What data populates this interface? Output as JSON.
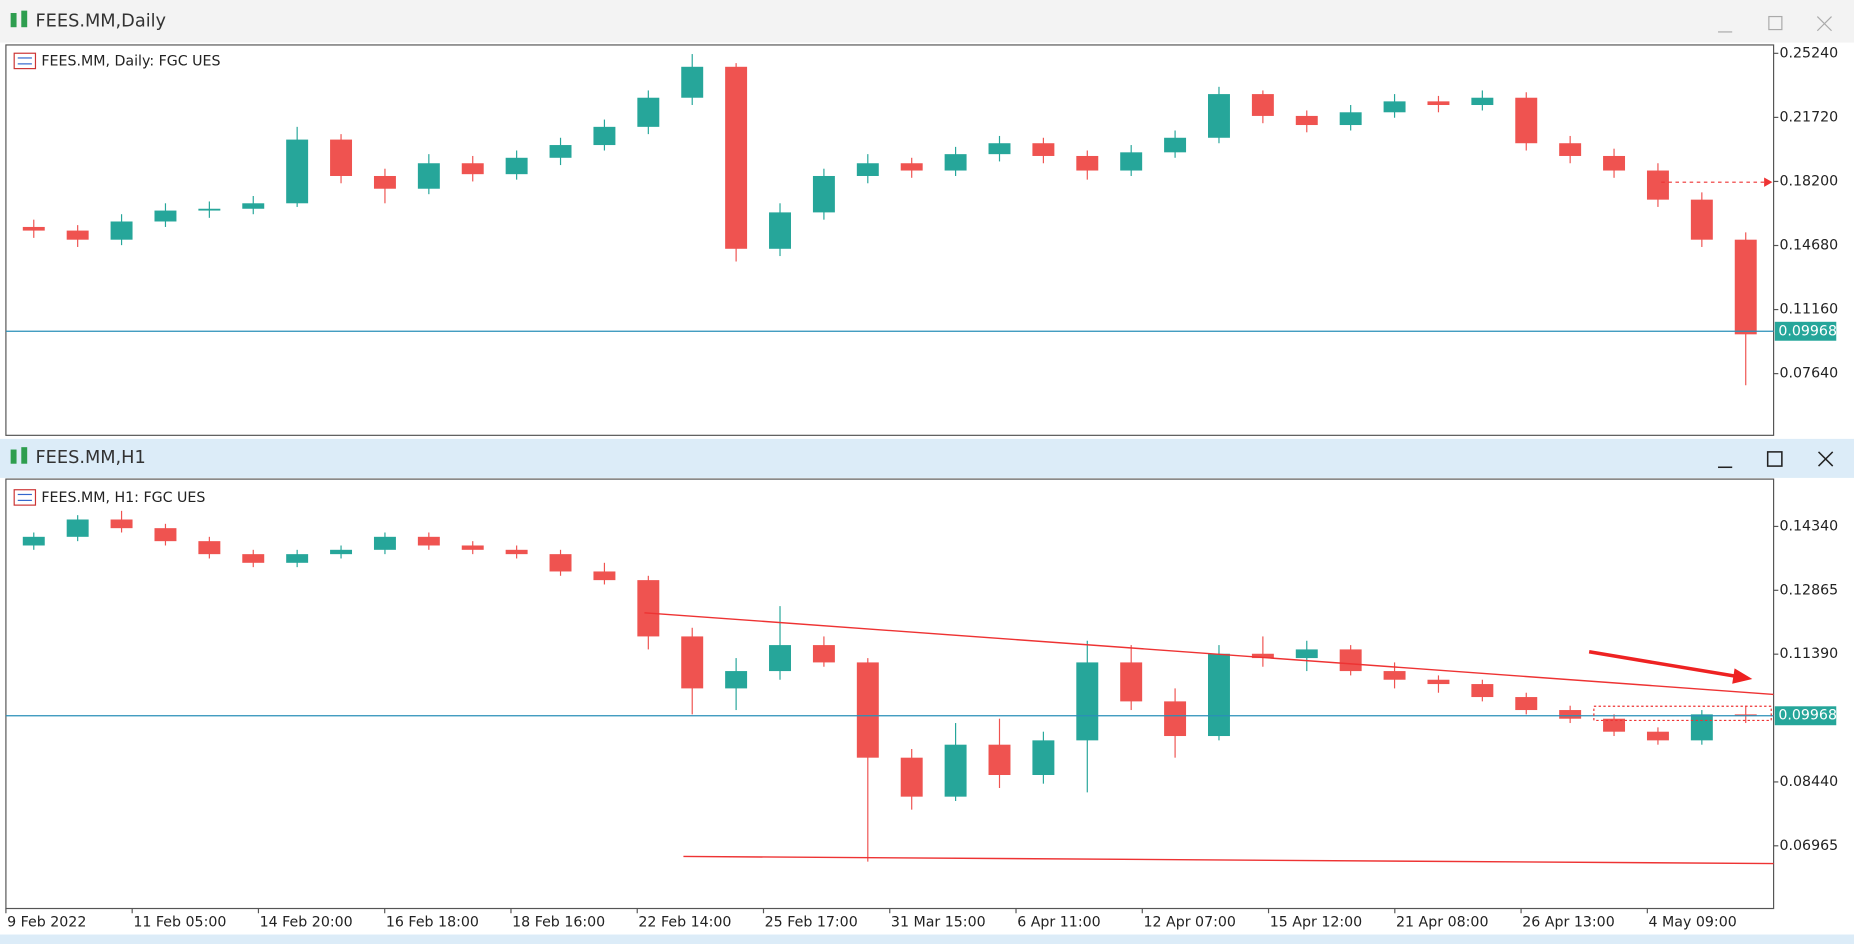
{
  "chart_data": [
    {
      "type": "candlestick",
      "title": "FEES.MM,Daily",
      "label": "FEES.MM, Daily:  FGC UES",
      "up_color": "#26a69a",
      "down_color": "#ef5350",
      "price_line_color": "#2a8fb8",
      "ylim": [
        0.0425,
        0.257
      ],
      "yticks": [
        {
          "value": 0.2524,
          "label": "0.25240"
        },
        {
          "value": 0.2172,
          "label": "0.21720"
        },
        {
          "value": 0.182,
          "label": "0.18200"
        },
        {
          "value": 0.1468,
          "label": "0.14680"
        },
        {
          "value": 0.1116,
          "label": "0.11160"
        },
        {
          "value": 0.0764,
          "label": "0.07640"
        }
      ],
      "last": 0.09968,
      "ohlc": [
        [
          0.157,
          0.161,
          0.151,
          0.155
        ],
        [
          0.155,
          0.158,
          0.146,
          0.15
        ],
        [
          0.15,
          0.164,
          0.147,
          0.16
        ],
        [
          0.16,
          0.17,
          0.157,
          0.166
        ],
        [
          0.166,
          0.171,
          0.162,
          0.167
        ],
        [
          0.167,
          0.174,
          0.164,
          0.17
        ],
        [
          0.17,
          0.212,
          0.168,
          0.205
        ],
        [
          0.205,
          0.208,
          0.181,
          0.185
        ],
        [
          0.185,
          0.189,
          0.17,
          0.178
        ],
        [
          0.178,
          0.197,
          0.175,
          0.192
        ],
        [
          0.192,
          0.196,
          0.182,
          0.186
        ],
        [
          0.186,
          0.199,
          0.183,
          0.195
        ],
        [
          0.195,
          0.206,
          0.191,
          0.202
        ],
        [
          0.202,
          0.216,
          0.199,
          0.212
        ],
        [
          0.212,
          0.232,
          0.208,
          0.228
        ],
        [
          0.228,
          0.252,
          0.224,
          0.245
        ],
        [
          0.245,
          0.247,
          0.138,
          0.145
        ],
        [
          0.145,
          0.17,
          0.141,
          0.165
        ],
        [
          0.165,
          0.189,
          0.161,
          0.185
        ],
        [
          0.185,
          0.197,
          0.181,
          0.192
        ],
        [
          0.192,
          0.195,
          0.184,
          0.188
        ],
        [
          0.188,
          0.201,
          0.185,
          0.197
        ],
        [
          0.197,
          0.207,
          0.193,
          0.203
        ],
        [
          0.203,
          0.206,
          0.192,
          0.196
        ],
        [
          0.196,
          0.199,
          0.183,
          0.188
        ],
        [
          0.188,
          0.202,
          0.185,
          0.198
        ],
        [
          0.198,
          0.21,
          0.195,
          0.206
        ],
        [
          0.206,
          0.234,
          0.203,
          0.23
        ],
        [
          0.23,
          0.232,
          0.214,
          0.218
        ],
        [
          0.218,
          0.221,
          0.209,
          0.213
        ],
        [
          0.213,
          0.224,
          0.21,
          0.22
        ],
        [
          0.22,
          0.23,
          0.217,
          0.226
        ],
        [
          0.226,
          0.229,
          0.22,
          0.224
        ],
        [
          0.224,
          0.232,
          0.221,
          0.228
        ],
        [
          0.228,
          0.231,
          0.199,
          0.203
        ],
        [
          0.203,
          0.207,
          0.192,
          0.196
        ],
        [
          0.196,
          0.2,
          0.184,
          0.188
        ],
        [
          0.188,
          0.192,
          0.168,
          0.172
        ],
        [
          0.172,
          0.176,
          0.146,
          0.15
        ],
        [
          0.15,
          0.154,
          0.07,
          0.098
        ]
      ]
    },
    {
      "type": "candlestick",
      "title": "FEES.MM,H1",
      "label": "FEES.MM, H1:  FGC UES",
      "up_color": "#26a69a",
      "down_color": "#ef5350",
      "price_line_color": "#2a8fb8",
      "ylim": [
        0.05517,
        0.15433
      ],
      "yticks": [
        {
          "value": 0.1434,
          "label": "0.14340"
        },
        0.12865,
        {
          "value": 0.1139,
          "label": "0.11390"
        },
        {
          "value": 0.0844,
          "label": "0.08440"
        },
        0.06965
      ],
      "last": 0.09968,
      "xlabels": [
        "9 Feb 2022",
        "11 Feb 05:00",
        "14 Feb 20:00",
        "16 Feb 18:00",
        "18 Feb 16:00",
        "22 Feb 14:00",
        "25 Feb 17:00",
        "31 Mar 15:00",
        "6 Apr 11:00",
        "12 Apr 07:00",
        "15 Apr 12:00",
        "21 Apr 08:00",
        "26 Apr 13:00",
        "4 May 09:00"
      ],
      "ohlc": [
        [
          0.139,
          0.142,
          0.138,
          0.141
        ],
        [
          0.141,
          0.146,
          0.14,
          0.145
        ],
        [
          0.145,
          0.147,
          0.142,
          0.143
        ],
        [
          0.143,
          0.144,
          0.139,
          0.14
        ],
        [
          0.14,
          0.141,
          0.136,
          0.137
        ],
        [
          0.137,
          0.138,
          0.134,
          0.135
        ],
        [
          0.135,
          0.138,
          0.134,
          0.137
        ],
        [
          0.137,
          0.139,
          0.136,
          0.138
        ],
        [
          0.138,
          0.142,
          0.137,
          0.141
        ],
        [
          0.141,
          0.142,
          0.138,
          0.139
        ],
        [
          0.139,
          0.14,
          0.137,
          0.138
        ],
        [
          0.138,
          0.139,
          0.136,
          0.137
        ],
        [
          0.137,
          0.138,
          0.132,
          0.133
        ],
        [
          0.133,
          0.135,
          0.13,
          0.131
        ],
        [
          0.131,
          0.132,
          0.115,
          0.118
        ],
        [
          0.118,
          0.12,
          0.1,
          0.106
        ],
        [
          0.106,
          0.113,
          0.101,
          0.11
        ],
        [
          0.11,
          0.125,
          0.108,
          0.116
        ],
        [
          0.116,
          0.118,
          0.111,
          0.112
        ],
        [
          0.112,
          0.113,
          0.066,
          0.09
        ],
        [
          0.09,
          0.092,
          0.078,
          0.081
        ],
        [
          0.081,
          0.098,
          0.08,
          0.093
        ],
        [
          0.093,
          0.099,
          0.083,
          0.086
        ],
        [
          0.086,
          0.096,
          0.084,
          0.094
        ],
        [
          0.094,
          0.117,
          0.082,
          0.112
        ],
        [
          0.112,
          0.116,
          0.101,
          0.103
        ],
        [
          0.103,
          0.106,
          0.09,
          0.095
        ],
        [
          0.095,
          0.116,
          0.094,
          0.114
        ],
        [
          0.114,
          0.118,
          0.111,
          0.113
        ],
        [
          0.113,
          0.117,
          0.11,
          0.115
        ],
        [
          0.115,
          0.116,
          0.109,
          0.11
        ],
        [
          0.11,
          0.112,
          0.106,
          0.108
        ],
        [
          0.108,
          0.109,
          0.105,
          0.107
        ],
        [
          0.107,
          0.108,
          0.103,
          0.104
        ],
        [
          0.104,
          0.105,
          0.1,
          0.101
        ],
        [
          0.101,
          0.102,
          0.098,
          0.099
        ],
        [
          0.099,
          0.1,
          0.095,
          0.096
        ],
        [
          0.096,
          0.097,
          0.093,
          0.094
        ],
        [
          0.094,
          0.101,
          0.093,
          0.1
        ],
        [
          0.1,
          0.102,
          0.098,
          0.0997
        ]
      ]
    }
  ]
}
